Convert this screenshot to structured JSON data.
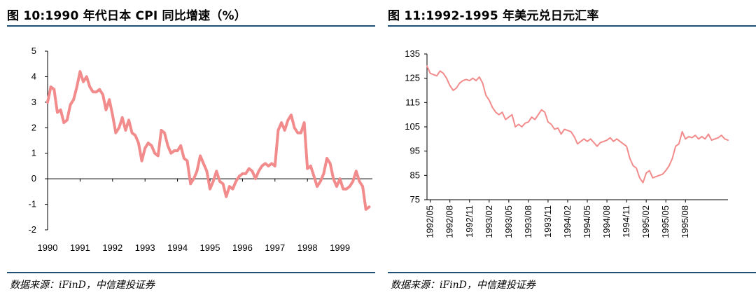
{
  "left": {
    "title": "图 10:1990 年代日本 CPI 同比增速（%）",
    "source": "数据来源：iFinD，中信建投证券"
  },
  "right": {
    "title": "图 11:1992-1995 年美元兑日元汇率",
    "source": "数据来源：iFinD，中信建投证券"
  },
  "chart_data": [
    {
      "type": "line",
      "title": "图 10:1990 年代日本 CPI 同比增速（%）",
      "line_color": "#f28b8b",
      "ylim": [
        -2,
        5
      ],
      "yticks": [
        "5",
        "4",
        "3",
        "2",
        "1",
        "0",
        "-1",
        "-2"
      ],
      "xlim": [
        1990,
        2000
      ],
      "xticks": [
        "1990",
        "1991",
        "1992",
        "1993",
        "1994",
        "1995",
        "1996",
        "1997",
        "1998",
        "1999"
      ],
      "x": [
        1990.0,
        1990.1,
        1990.2,
        1990.3,
        1990.4,
        1990.5,
        1990.6,
        1990.7,
        1990.8,
        1990.9,
        1991.0,
        1991.1,
        1991.2,
        1991.3,
        1991.4,
        1991.5,
        1991.6,
        1991.7,
        1991.8,
        1991.9,
        1992.0,
        1992.1,
        1992.2,
        1992.3,
        1992.4,
        1992.5,
        1992.6,
        1992.7,
        1992.8,
        1992.9,
        1993.0,
        1993.1,
        1993.2,
        1993.3,
        1993.4,
        1993.5,
        1993.6,
        1993.7,
        1993.8,
        1993.9,
        1994.0,
        1994.1,
        1994.2,
        1994.3,
        1994.4,
        1994.5,
        1994.6,
        1994.7,
        1994.8,
        1994.9,
        1995.0,
        1995.1,
        1995.2,
        1995.3,
        1995.4,
        1995.5,
        1995.6,
        1995.7,
        1995.8,
        1995.9,
        1996.0,
        1996.1,
        1996.2,
        1996.3,
        1996.4,
        1996.5,
        1996.6,
        1996.7,
        1996.8,
        1996.9,
        1997.0,
        1997.1,
        1997.2,
        1997.3,
        1997.4,
        1997.5,
        1997.6,
        1997.7,
        1997.8,
        1997.9,
        1998.0,
        1998.1,
        1998.2,
        1998.3,
        1998.4,
        1998.5,
        1998.6,
        1998.7,
        1998.8,
        1998.9,
        1999.0,
        1999.1,
        1999.2,
        1999.3,
        1999.4,
        1999.5,
        1999.6,
        1999.7,
        1999.8,
        1999.9
      ],
      "values": [
        3.0,
        3.6,
        3.5,
        2.6,
        2.7,
        2.2,
        2.3,
        2.9,
        3.1,
        3.6,
        4.2,
        3.8,
        4.0,
        3.6,
        3.4,
        3.4,
        3.5,
        3.3,
        2.7,
        3.1,
        2.5,
        1.8,
        2.0,
        2.4,
        1.9,
        2.3,
        1.8,
        1.7,
        1.4,
        0.7,
        1.2,
        1.4,
        1.3,
        1.0,
        0.9,
        1.9,
        1.8,
        1.3,
        1.0,
        1.1,
        1.1,
        1.3,
        0.8,
        0.7,
        -0.2,
        0.0,
        0.3,
        0.9,
        0.6,
        0.3,
        -0.4,
        -0.1,
        0.3,
        -0.1,
        -0.2,
        -0.7,
        -0.3,
        -0.4,
        -0.1,
        0.1,
        0.2,
        0.2,
        0.4,
        0.3,
        0.0,
        0.3,
        0.5,
        0.6,
        0.5,
        0.6,
        0.5,
        1.9,
        2.2,
        1.9,
        2.3,
        2.5,
        2.0,
        1.8,
        1.8,
        2.2,
        0.4,
        0.5,
        0.1,
        -0.3,
        -0.1,
        0.2,
        0.8,
        0.6,
        0.0,
        -0.3,
        0.0,
        -0.4,
        -0.4,
        -0.3,
        -0.1,
        0.3,
        -0.1,
        -0.3,
        -1.2,
        -1.1
      ]
    },
    {
      "type": "line",
      "title": "图 11:1992-1995 年美元兑日元汇率",
      "line_color": "#f28b8b",
      "ylim": [
        75,
        135
      ],
      "yticks": [
        "135",
        "125",
        "115",
        "105",
        "95",
        "85",
        "75"
      ],
      "xlim": [
        0,
        46
      ],
      "xticks": [
        "1992/05",
        "1992/08",
        "1992/11",
        "1993/02",
        "1993/05",
        "1993/08",
        "1993/11",
        "1994/02",
        "1994/05",
        "1994/08",
        "1994/11",
        "1995/02",
        "1995/05",
        "1995/08"
      ],
      "x": [
        0,
        0.5,
        1,
        1.5,
        2,
        2.5,
        3,
        3.5,
        4,
        4.5,
        5,
        5.5,
        6,
        6.5,
        7,
        7.5,
        8,
        8.5,
        9,
        9.5,
        10,
        10.5,
        11,
        11.5,
        12,
        12.5,
        13,
        13.5,
        14,
        14.5,
        15,
        15.5,
        16,
        16.5,
        17,
        17.5,
        18,
        18.5,
        19,
        19.5,
        20,
        20.5,
        21,
        21.5,
        22,
        22.5,
        23,
        23.5,
        24,
        24.5,
        25,
        25.5,
        26,
        26.5,
        27,
        27.5,
        28,
        28.5,
        29,
        29.5,
        30,
        30.5,
        31,
        31.5,
        32,
        32.5,
        33,
        33.5,
        34,
        34.5,
        35,
        35.5,
        36,
        36.5,
        37,
        37.5,
        38,
        38.5,
        39,
        39.5,
        40,
        40.5,
        41,
        41.5,
        42,
        42.5,
        43,
        43.5,
        44,
        44.5,
        45,
        45.5,
        46
      ],
      "values": [
        130.0,
        127.0,
        126.5,
        126.0,
        128.0,
        127.0,
        125.0,
        122.0,
        120.0,
        121.0,
        123.0,
        124.0,
        124.5,
        124.0,
        125.0,
        124.0,
        125.5,
        123.0,
        118.0,
        116.0,
        113.0,
        111.0,
        110.0,
        111.0,
        108.0,
        109.0,
        110.0,
        105.0,
        106.0,
        105.0,
        106.5,
        107.0,
        109.0,
        108.0,
        110.0,
        112.0,
        111.0,
        107.0,
        106.0,
        104.0,
        104.5,
        102.0,
        104.0,
        103.5,
        103.0,
        101.0,
        98.0,
        99.0,
        100.0,
        99.0,
        100.0,
        98.5,
        97.0,
        98.5,
        99.0,
        99.5,
        100.5,
        99.0,
        100.0,
        99.0,
        98.0,
        97.0,
        92.0,
        89.0,
        88.0,
        84.0,
        82.0,
        86.0,
        87.0,
        84.0,
        84.5,
        85.0,
        85.5,
        87.0,
        89.0,
        92.0,
        97.0,
        98.0,
        103.0,
        100.0,
        101.0,
        100.5,
        101.5,
        100.0,
        101.0,
        100.0,
        102.0,
        99.5,
        100.0,
        100.5,
        101.5,
        100.0,
        99.5
      ]
    }
  ]
}
